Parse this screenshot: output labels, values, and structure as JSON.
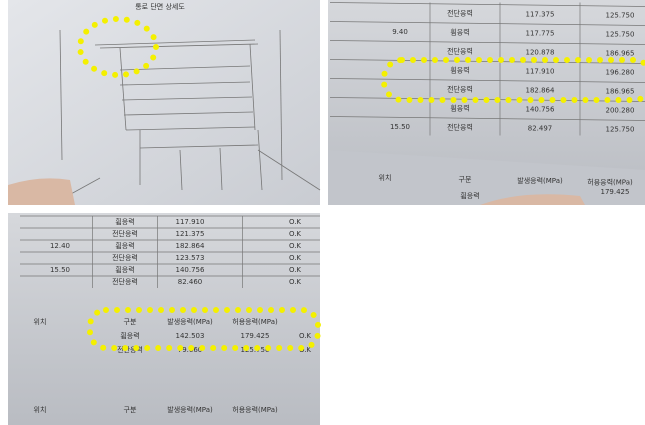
{
  "drawing": {
    "title": "통로 단면 상세도"
  },
  "top_right": {
    "rows": [
      [
        "",
        "전단응력",
        "117.375",
        "125.750"
      ],
      [
        "9.40",
        "휨응력",
        "117.775",
        "125.750"
      ],
      [
        "",
        "전단응력",
        "120.878",
        "186.965"
      ],
      [
        "",
        "휨응력",
        "117.910",
        "196.280"
      ],
      [
        "",
        "전단응력",
        "182.864",
        "186.965"
      ],
      [
        "",
        "휨응력",
        "140.756",
        "200.280"
      ],
      [
        "15.50",
        "전단응력",
        "82.497",
        "125.750"
      ]
    ],
    "header": [
      "위치",
      "구분",
      "발생응력(MPa)",
      "허용응력(MPa)"
    ],
    "header_row": [
      "휨응력",
      "179.425"
    ]
  },
  "bottom_left": {
    "rows": [
      [
        "",
        "휨응력",
        "117.910",
        "O.K"
      ],
      [
        "",
        "전단응력",
        "121.375",
        "O.K"
      ],
      [
        "12.40",
        "휨응력",
        "182.864",
        "O.K"
      ],
      [
        "",
        "전단응력",
        "123.573",
        "O.K"
      ],
      [
        "15.50",
        "휨응력",
        "140.756",
        "O.K"
      ],
      [
        "",
        "전단응력",
        "82.460",
        "O.K"
      ]
    ],
    "header": [
      "위치",
      "구분",
      "발생응력(MPa)",
      "허용응력(MPa)"
    ],
    "header_rows": [
      [
        "휨응력",
        "142.503",
        "179.425",
        "O.K"
      ],
      [
        "전단응력",
        "79.660",
        "125.750",
        "O.K"
      ]
    ],
    "lower_header": [
      "위치",
      "구분",
      "발생응력(MPa)",
      "허용응력(MPa)"
    ]
  }
}
